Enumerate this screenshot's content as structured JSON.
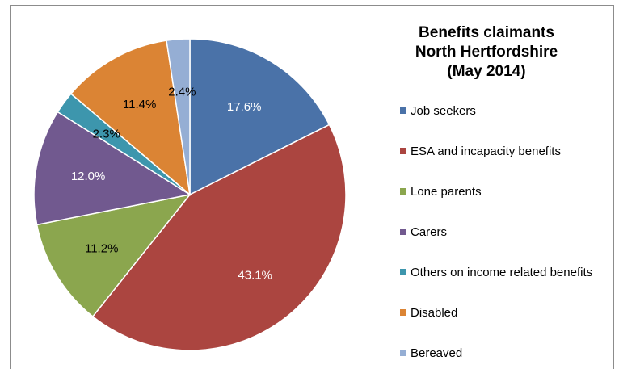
{
  "chart_data": {
    "type": "pie",
    "title_lines": [
      "Benefits claimants",
      "North Hertfordshire",
      "(May 2014)"
    ],
    "legend_position": "right",
    "slices": [
      {
        "name": "Job seekers",
        "value": 17.6,
        "label": "17.6%",
        "color": "#4a72a8",
        "label_color": "#ffffff"
      },
      {
        "name": "ESA and incapacity benefits",
        "value": 43.1,
        "label": "43.1%",
        "color": "#ab4540",
        "label_color": "#ffffff"
      },
      {
        "name": "Lone parents",
        "value": 11.2,
        "label": "11.2%",
        "color": "#8ba64e",
        "label_color": "#000000"
      },
      {
        "name": "Carers",
        "value": 12.0,
        "label": "12.0%",
        "color": "#71598f",
        "label_color": "#ffffff"
      },
      {
        "name": "Others on income related benefits",
        "value": 2.3,
        "label": "2.3%",
        "color": "#3d96ad",
        "label_color": "#000000"
      },
      {
        "name": "Disabled",
        "value": 11.4,
        "label": "11.4%",
        "color": "#db8434",
        "label_color": "#000000"
      },
      {
        "name": "Bereaved",
        "value": 2.4,
        "label": "2.4%",
        "color": "#95aed4",
        "label_color": "#000000"
      }
    ]
  }
}
